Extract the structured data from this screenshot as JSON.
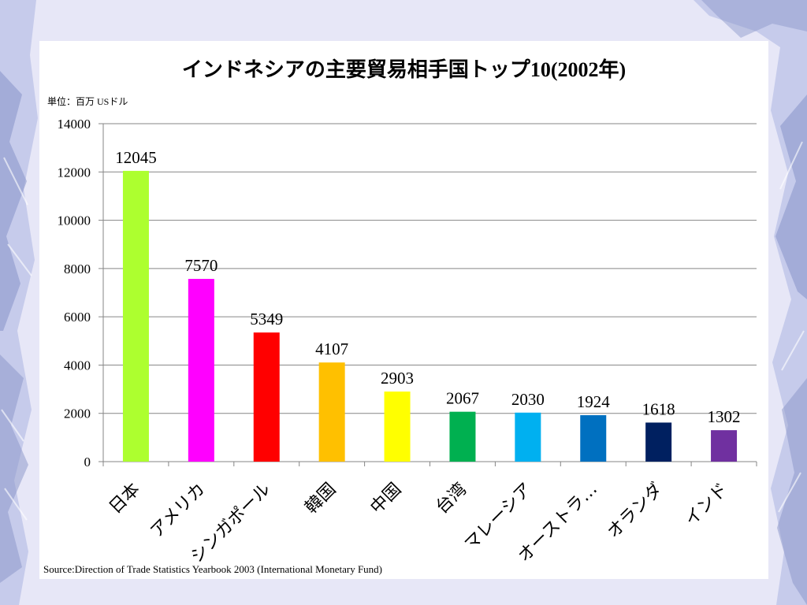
{
  "page": {
    "background_color": "#e7e7f7",
    "panel_color": "#ffffff"
  },
  "chart_data": {
    "type": "bar",
    "title": "インドネシアの主要貿易相手国トップ10(2002年)",
    "unit_label": "単位：百万 USドル",
    "categories": [
      "日本",
      "アメリカ",
      "シンガポール",
      "韓国",
      "中国",
      "台湾",
      "マレーシア",
      "オーストラ…",
      "オランダ",
      "インド"
    ],
    "values": [
      12045,
      7570,
      5349,
      4107,
      2903,
      2067,
      2030,
      1924,
      1618,
      1302
    ],
    "bar_colors": [
      "#adff2f",
      "#ff00ff",
      "#ff0000",
      "#ffc000",
      "#ffff00",
      "#00b050",
      "#00b0f0",
      "#0070c0",
      "#002060",
      "#7030a0"
    ],
    "ylim": [
      0,
      14000
    ],
    "yticks": [
      0,
      2000,
      4000,
      6000,
      8000,
      10000,
      12000,
      14000
    ],
    "grid": true,
    "data_labels": true,
    "source": "Source:Direction of Trade Statistics Yearbook 2003 (International Monetary Fund)"
  }
}
